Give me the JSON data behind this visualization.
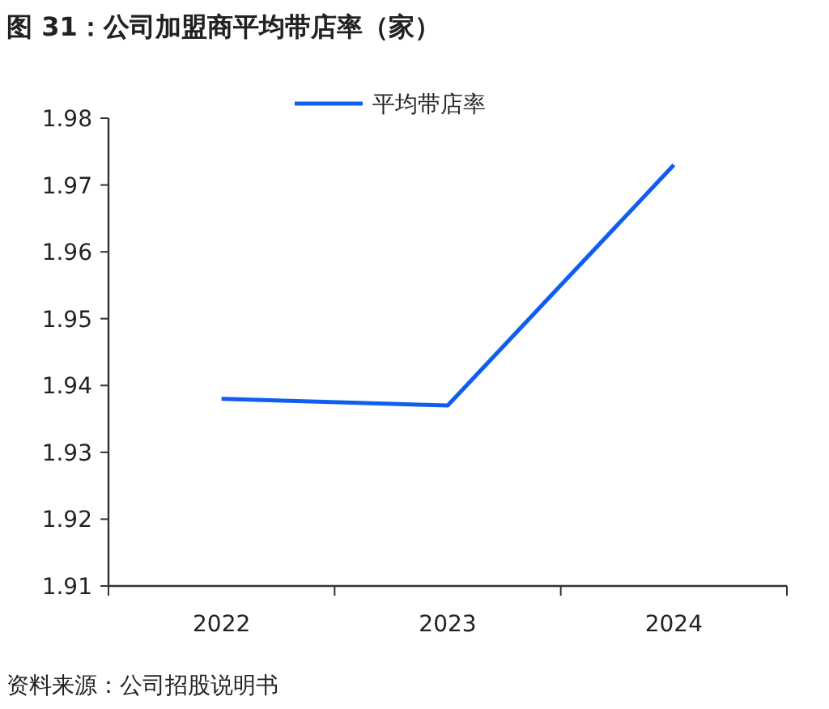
{
  "chart_data": {
    "type": "line",
    "title": "图 31：公司加盟商平均带店率（家）",
    "categories": [
      "2022",
      "2023",
      "2024"
    ],
    "series": [
      {
        "name": "平均带店率",
        "color": "#0f5ef0",
        "values": [
          1.938,
          1.937,
          1.973
        ]
      }
    ],
    "ylim": [
      1.91,
      1.98
    ],
    "yticks": [
      1.91,
      1.92,
      1.93,
      1.94,
      1.95,
      1.96,
      1.97,
      1.98
    ],
    "legend": "top",
    "grid": false,
    "marker": "none",
    "line_style": "solid",
    "annotations": [
      "资料来源：公司招股说明书"
    ]
  }
}
